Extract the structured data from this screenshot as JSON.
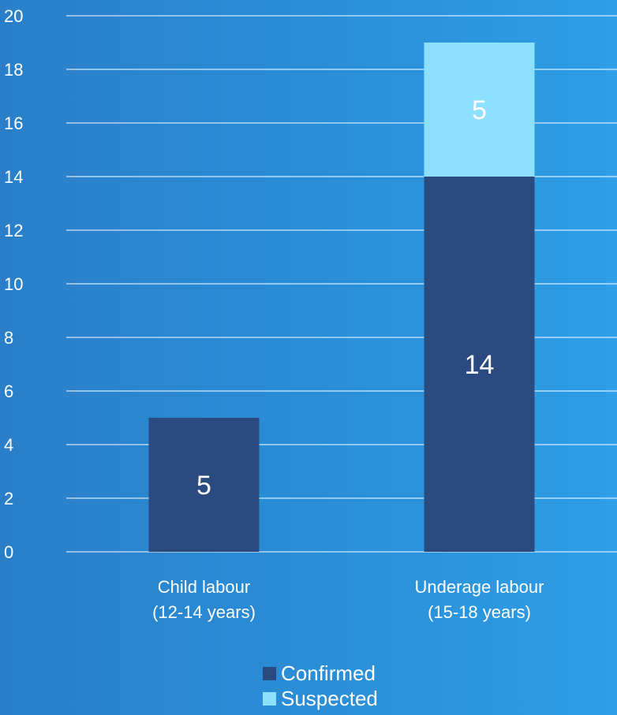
{
  "chart_data": {
    "type": "bar",
    "stacked": true,
    "categories": [
      [
        "Child labour",
        "(12-14 years)"
      ],
      [
        "Underage labour",
        "(15-18 years)"
      ]
    ],
    "series": [
      {
        "name": "Confirmed",
        "values": [
          5,
          14
        ],
        "color": "#2a4a80"
      },
      {
        "name": "Suspected",
        "values": [
          0,
          5
        ],
        "color": "#8ee0ff"
      }
    ],
    "data_labels": [
      [
        "5",
        "14"
      ],
      [
        "",
        "5"
      ]
    ],
    "ylim": [
      0,
      20
    ],
    "yticks": [
      0,
      2,
      4,
      6,
      8,
      10,
      12,
      14,
      16,
      18,
      20
    ],
    "grid": true,
    "legend_position": "bottom",
    "title": "",
    "xlabel": "",
    "ylabel": ""
  }
}
